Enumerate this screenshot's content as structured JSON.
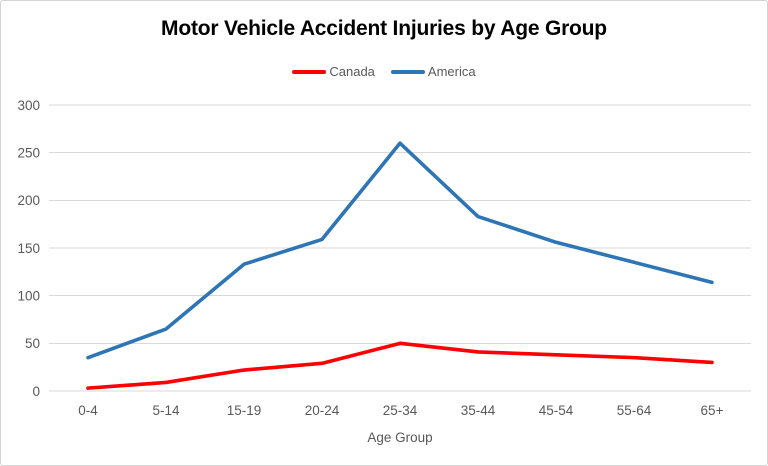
{
  "chart_data": {
    "type": "line",
    "title": "Motor Vehicle Accident Injuries by Age Group",
    "categories": [
      "0-4",
      "5-14",
      "15-19",
      "20-24",
      "25-34",
      "35-44",
      "45-54",
      "55-64",
      "65+"
    ],
    "series": [
      {
        "name": "Canada",
        "color": "#FF0000",
        "values": [
          3,
          9,
          22,
          29,
          50,
          41,
          38,
          35,
          30
        ]
      },
      {
        "name": "America",
        "color": "#2E75B6",
        "values": [
          35,
          65,
          133,
          159,
          260,
          183,
          156,
          135,
          114
        ]
      }
    ],
    "xlabel": "Age Group",
    "ylabel": "",
    "ylim": [
      0,
      300
    ],
    "yticks": [
      0,
      50,
      100,
      150,
      200,
      250,
      300
    ],
    "grid": "horizontal",
    "legend_position": "top"
  },
  "colors": {
    "grid": "#D9D9D9",
    "axis_text": "#595959",
    "legend_text": "#595959",
    "title_text": "#000000",
    "background": "#FFFFFF",
    "border": "#D4D4D4"
  }
}
